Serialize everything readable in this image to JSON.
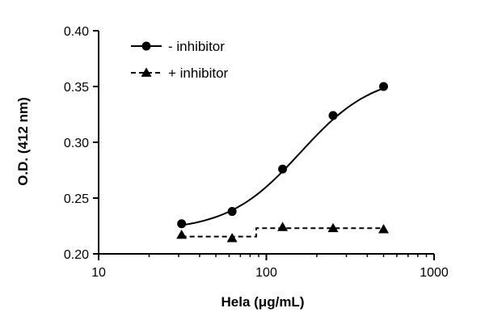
{
  "chart_data": {
    "type": "line",
    "title": "",
    "xlabel": "Hela (μg/mL)",
    "ylabel": "O.D.  (412 nm)",
    "x_scale": "log",
    "xlim": [
      10,
      1000
    ],
    "ylim": [
      0.2,
      0.4
    ],
    "x_ticks": [
      10,
      100,
      1000
    ],
    "x_tick_labels": [
      "10",
      "100",
      "1000"
    ],
    "y_ticks": [
      0.2,
      0.25,
      0.3,
      0.35,
      0.4
    ],
    "y_tick_labels": [
      "0.20",
      "0.25",
      "0.30",
      "0.35",
      "0.40"
    ],
    "grid": false,
    "legend_position": "top-left",
    "series": [
      {
        "name": "- inhibitor",
        "marker": "circle",
        "line_style": "solid",
        "fit": "sigmoid",
        "color": "#000000",
        "x": [
          31.25,
          62.5,
          125,
          250,
          500
        ],
        "y": [
          0.227,
          0.238,
          0.276,
          0.324,
          0.35
        ]
      },
      {
        "name": "+ inhibitor",
        "marker": "triangle",
        "line_style": "dashed",
        "fit": "step",
        "color": "#000000",
        "x": [
          31.25,
          62.5,
          125,
          250,
          500
        ],
        "y": [
          0.217,
          0.214,
          0.224,
          0.223,
          0.222
        ]
      }
    ]
  }
}
